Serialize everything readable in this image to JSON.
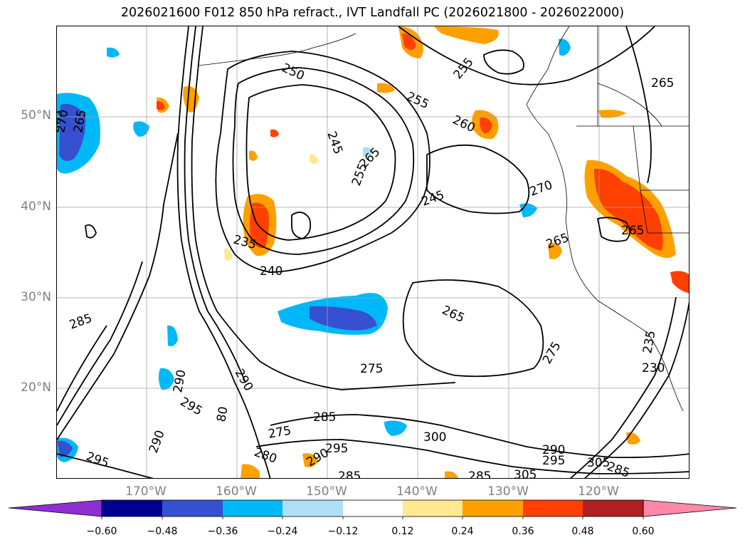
{
  "title": "2026021600 F012 850 hPa refract., IVT Landfall PC (2026021800 - 2026022000)",
  "lat_labels": [
    "50°N",
    "40°N",
    "30°N",
    "20°N"
  ],
  "lon_labels": [
    "170°W",
    "160°W",
    "150°W",
    "140°W",
    "130°W",
    "120°W"
  ],
  "contour_labels": [
    "265",
    "265",
    "270",
    "250",
    "255",
    "255",
    "260",
    "265",
    "245",
    "255",
    "265",
    "245",
    "235",
    "240",
    "270",
    "265",
    "265",
    "275",
    "265",
    "275",
    "285",
    "290",
    "290",
    "295",
    "280",
    "275",
    "285",
    "300",
    "295",
    "290",
    "295",
    "295",
    "290",
    "285",
    "305",
    "305",
    "285",
    "230",
    "235",
    "285",
    "80",
    "290"
  ],
  "colorbar": {
    "ticks": [
      "−0.60",
      "−0.48",
      "−0.36",
      "−0.24",
      "−0.12",
      "0.12",
      "0.24",
      "0.36",
      "0.48",
      "0.60"
    ],
    "colors": [
      "#8f2fd0",
      "#000090",
      "#3550d0",
      "#00b8f8",
      "#b0e0f8",
      "#ffffff",
      "#ffe890",
      "#ffa000",
      "#ff4000",
      "#b02020",
      "#ff88aa"
    ],
    "under_color": "#8f2fd0",
    "over_color": "#ff88aa"
  }
}
